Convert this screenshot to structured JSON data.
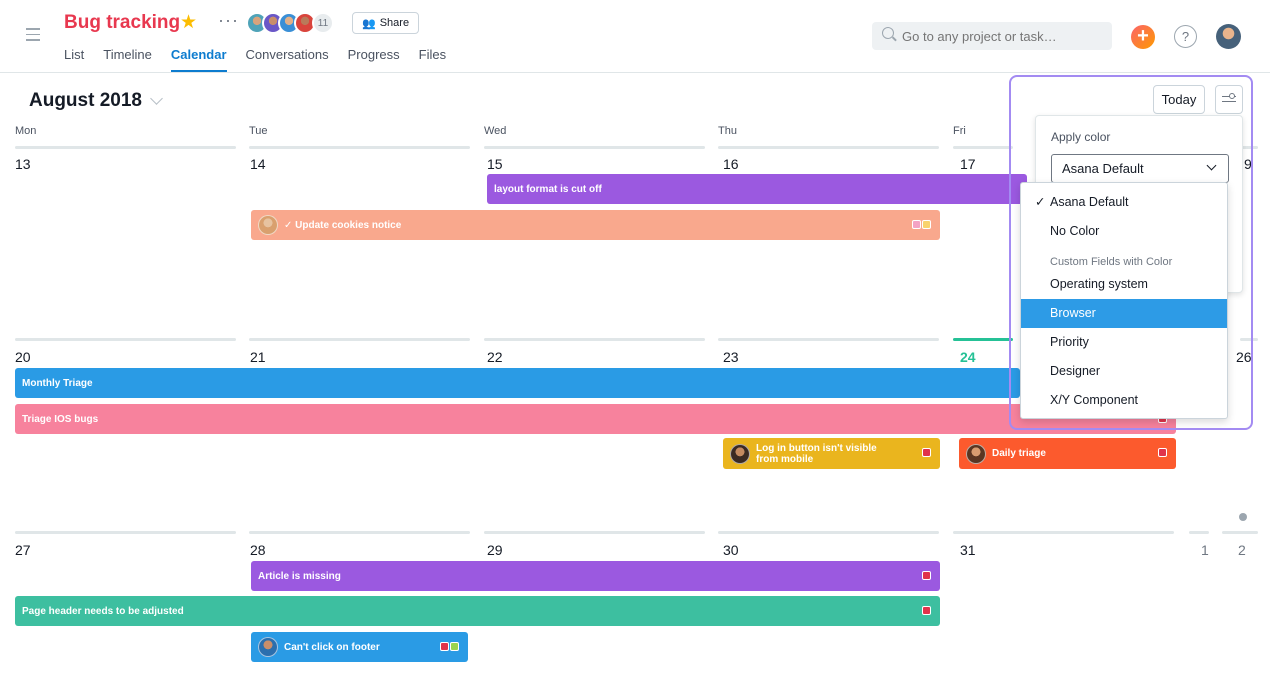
{
  "header": {
    "project_title": "Bug tracking",
    "member_count": "11",
    "share_label": "Share",
    "tabs": [
      {
        "label": "List"
      },
      {
        "label": "Timeline"
      },
      {
        "label": "Calendar",
        "active": true
      },
      {
        "label": "Conversations"
      },
      {
        "label": "Progress"
      },
      {
        "label": "Files"
      }
    ],
    "search_placeholder": "Go to any project or task…",
    "add_label": "+",
    "help_label": "?"
  },
  "calendar": {
    "month_title": "August 2018",
    "today_label": "Today",
    "weekdays": [
      "Mon",
      "Tue",
      "Wed",
      "Thu",
      "Fri"
    ],
    "weeks": [
      [
        "13",
        "14",
        "15",
        "16",
        "17",
        "9"
      ],
      [
        "20",
        "21",
        "22",
        "23",
        "24",
        "26"
      ],
      [
        "27",
        "28",
        "29",
        "30",
        "31",
        "1",
        "2"
      ]
    ]
  },
  "events": [
    {
      "label": "layout format is cut off",
      "color": "#9b59e0"
    },
    {
      "label": "✓ Update cookies notice",
      "color": "#f9a88d",
      "tags": [
        "#f4a3c4",
        "#f8d36e"
      ]
    },
    {
      "label": "Monthly Triage",
      "color": "#2a9be5"
    },
    {
      "label": "Triage IOS bugs",
      "color": "#f7829d"
    },
    {
      "label": "Log in button isn't visible from mobile",
      "color": "#eab51e",
      "tags": [
        "#e0334b"
      ]
    },
    {
      "label": "Daily triage",
      "color": "#fc5a2d",
      "tags": [
        "#e0334b"
      ]
    },
    {
      "label": "Article is missing",
      "color": "#9b59e0",
      "tags": [
        "#e0334b"
      ]
    },
    {
      "label": "Page header needs to be adjusted",
      "color": "#3dbfa0",
      "tags": [
        "#e0334b"
      ]
    },
    {
      "label": "Can't click on footer",
      "color": "#2a9be5",
      "tags": [
        "#e0334b",
        "#9bd44e"
      ]
    }
  ],
  "color_panel": {
    "title": "Apply color",
    "selected_value": "Asana Default",
    "options": [
      {
        "label": "Asana Default",
        "checked": true
      },
      {
        "label": "No Color"
      },
      {
        "group": "Custom Fields with Color"
      },
      {
        "label": "Operating system"
      },
      {
        "label": "Browser",
        "highlighted": true
      },
      {
        "label": "Priority"
      },
      {
        "label": "Designer"
      },
      {
        "label": "X/Y Component"
      }
    ]
  },
  "colors": {
    "brand_red": "#e8384f",
    "accent_blue": "#0d7ccf",
    "today_green": "#25c196",
    "highlight_purple": "#a38bf2"
  }
}
